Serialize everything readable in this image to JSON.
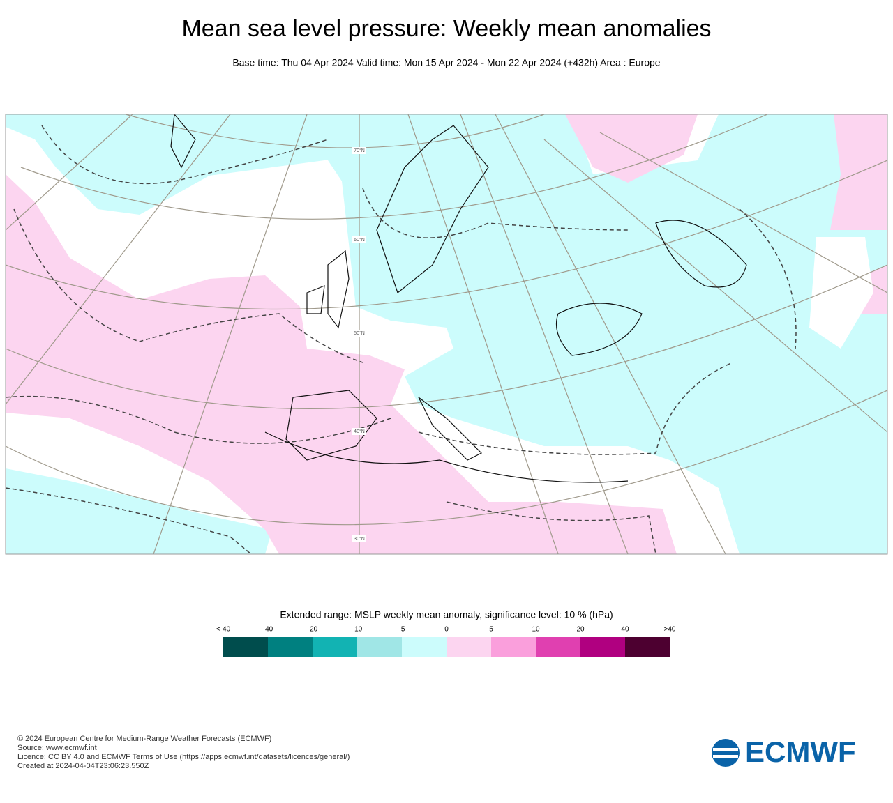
{
  "header": {
    "title": "Mean sea level pressure: Weekly mean anomalies",
    "subtitle": "Base time: Thu 04 Apr 2024 Valid time: Mon 15 Apr 2024 - Mon 22 Apr 2024 (+432h) Area : Europe"
  },
  "map": {
    "latitude_labels": [
      "70°N",
      "60°N",
      "50°N",
      "40°N",
      "30°N"
    ]
  },
  "legend": {
    "title": "Extended range: MSLP weekly mean anomaly, significance level: 10 % (hPa)",
    "labels": [
      "<-40",
      "-40",
      "-20",
      "-10",
      "-5",
      "0",
      "5",
      "10",
      "20",
      "40",
      ">40"
    ],
    "colors": [
      "#004d4d",
      "#008080",
      "#12b3b3",
      "#a0e6e6",
      "#ccfcfc",
      "#fcd5f0",
      "#fa9fdc",
      "#e040b0",
      "#b00080",
      "#4d0030"
    ]
  },
  "footer": {
    "lines": [
      "© 2024 European Centre for Medium-Range Weather Forecasts (ECMWF)",
      "Source: www.ecmwf.int",
      "Licence: CC BY 4.0 and ECMWF Terms of Use (https://apps.ecmwf.int/datasets/licences/general/)",
      "Created at 2024-04-04T23:06:23.550Z"
    ],
    "logo": "ECMWF"
  }
}
